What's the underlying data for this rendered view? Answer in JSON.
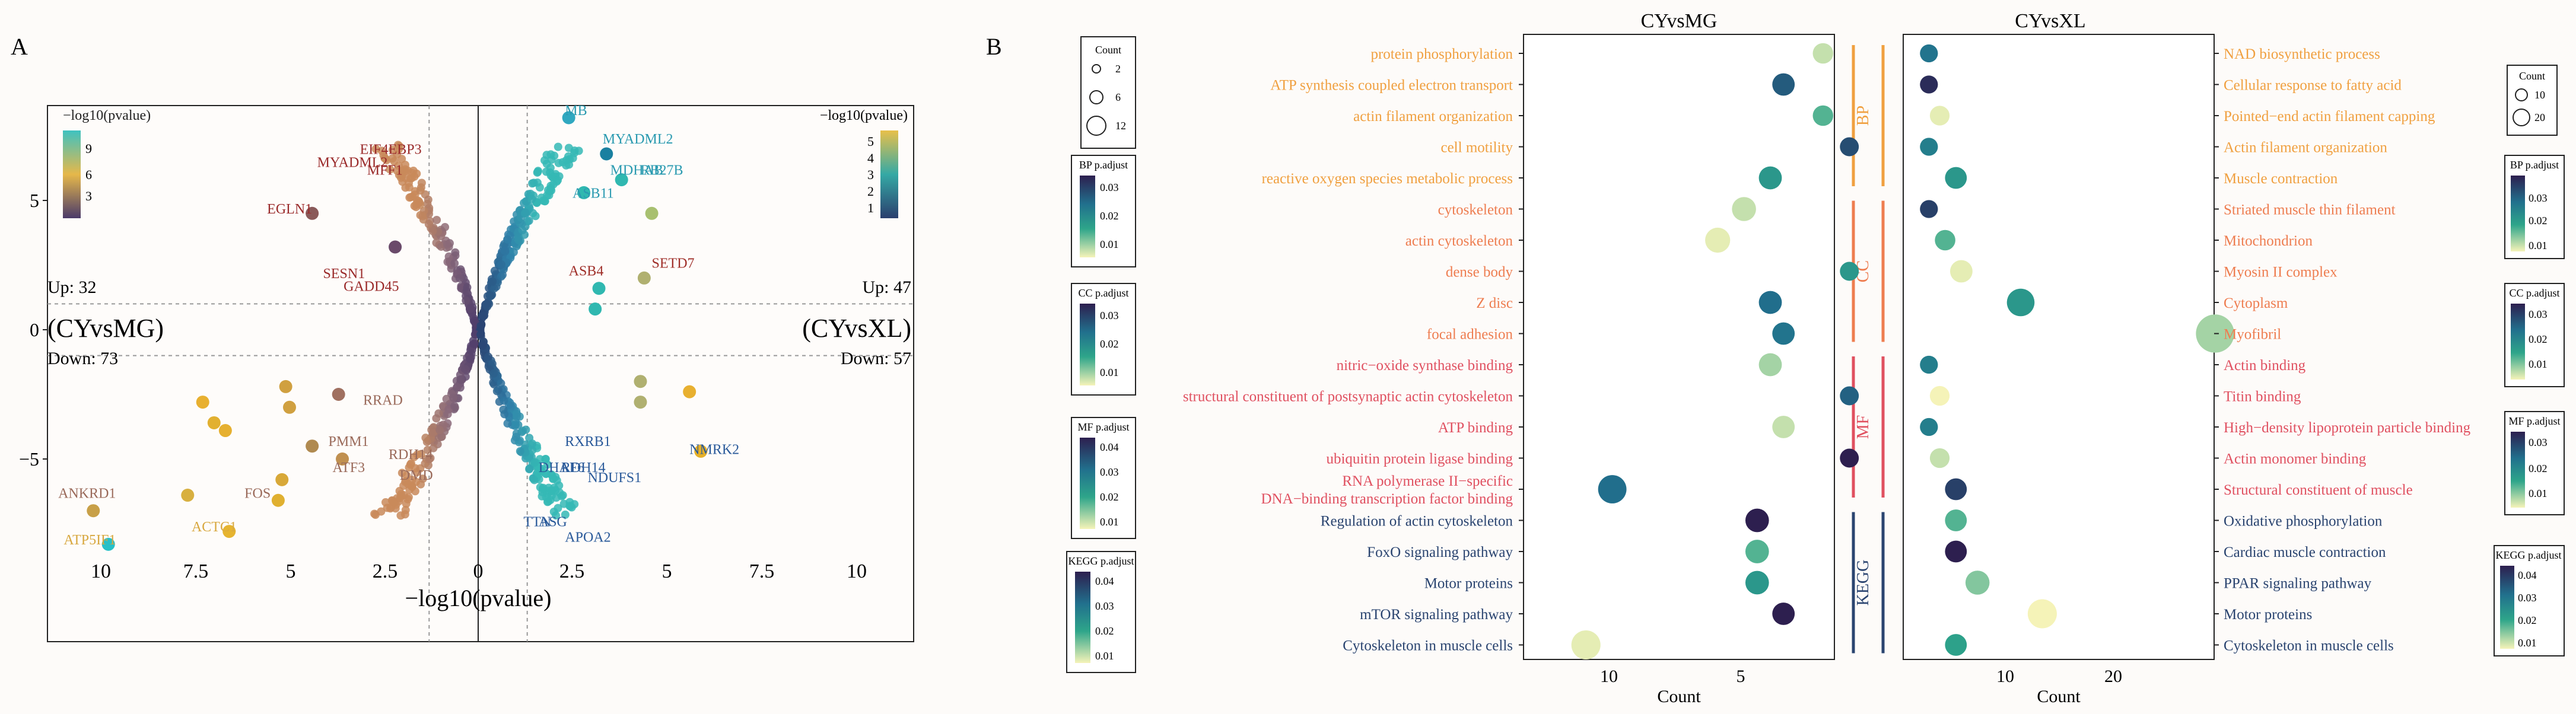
{
  "panel_labels": [
    "A",
    "B"
  ],
  "colors": {
    "bp": "#f0a040",
    "cc": "#ee7d50",
    "mf": "#e05060",
    "kegg": "#2a4470",
    "viridis_low": "#f5f3b8",
    "viridis_high": "#2d1f4f"
  },
  "chart_data": [
    {
      "type": "scatter",
      "name": "volcano",
      "xlabel": "−log10(pvalue)",
      "xticks_left": [
        "10",
        "7.5",
        "5",
        "2.5",
        "0"
      ],
      "xticks_right": [
        "2.5",
        "5",
        "7.5",
        "10"
      ],
      "yticks": [
        "5",
        "0",
        "−5"
      ],
      "left_title": "(CYvsMG)",
      "right_title": "(CYvsXL)",
      "left_up": "Up: 32",
      "left_down": "Down: 73",
      "right_up": "Up: 47",
      "right_down": "Down: 57",
      "left_legend": {
        "title": "−log10(pvalue)",
        "ticks": [
          "9",
          "6",
          "3"
        ]
      },
      "right_legend": {
        "title": "−log10(pvalue)",
        "ticks": [
          "5",
          "4",
          "3",
          "2",
          "1"
        ]
      },
      "labels": [
        {
          "text": "EIF4EBP3",
          "x": -1.5,
          "y": 6.8,
          "side": "left"
        },
        {
          "text": "MYADML2",
          "x": -2.4,
          "y": 6.3,
          "side": "left"
        },
        {
          "text": "MFF1",
          "x": -2.0,
          "y": 6.0,
          "side": "left"
        },
        {
          "text": "EGLN1",
          "x": -4.4,
          "y": 4.5,
          "side": "left"
        },
        {
          "text": "SESN1",
          "x": -3.0,
          "y": 2.0,
          "side": "left"
        },
        {
          "text": "GADD45",
          "x": -2.1,
          "y": 1.5,
          "side": "left"
        },
        {
          "text": "RRAD",
          "x": -2.0,
          "y": -2.9,
          "side": "left"
        },
        {
          "text": "PMM1",
          "x": -2.9,
          "y": -4.5,
          "side": "left"
        },
        {
          "text": "DMD",
          "x": -1.2,
          "y": -5.8,
          "side": "left"
        },
        {
          "text": "RDH14",
          "x": -1.2,
          "y": -5.0,
          "side": "left"
        },
        {
          "text": "ATF3",
          "x": -3.0,
          "y": -5.5,
          "side": "left"
        },
        {
          "text": "FOS",
          "x": -5.5,
          "y": -6.5,
          "side": "left"
        },
        {
          "text": "ANKRD1",
          "x": -9.6,
          "y": -6.5,
          "side": "left"
        },
        {
          "text": "ACTC1",
          "x": -6.4,
          "y": -7.8,
          "side": "left"
        },
        {
          "text": "ATP5IF1",
          "x": -9.6,
          "y": -8.3,
          "side": "left"
        },
        {
          "text": "MB",
          "x": 2.3,
          "y": 8.3,
          "side": "right"
        },
        {
          "text": "MYADML2",
          "x": 3.3,
          "y": 7.2,
          "side": "right"
        },
        {
          "text": "MDHAB",
          "x": 3.5,
          "y": 6.0,
          "side": "right"
        },
        {
          "text": "RB27B",
          "x": 4.3,
          "y": 6.0,
          "side": "right"
        },
        {
          "text": "ASB11",
          "x": 2.5,
          "y": 5.1,
          "side": "right"
        },
        {
          "text": "ASB4",
          "x": 2.4,
          "y": 2.1,
          "side": "right"
        },
        {
          "text": "SETD7",
          "x": 4.6,
          "y": 2.4,
          "side": "right"
        },
        {
          "text": "NMRK2",
          "x": 5.6,
          "y": -4.8,
          "side": "right"
        },
        {
          "text": "NDUFS1",
          "x": 2.9,
          "y": -5.9,
          "side": "right"
        },
        {
          "text": "RDH14",
          "x": 2.2,
          "y": -5.5,
          "side": "right"
        },
        {
          "text": "RXRB1",
          "x": 2.3,
          "y": -4.5,
          "side": "right"
        },
        {
          "text": "DHAF6",
          "x": 1.6,
          "y": -5.5,
          "side": "right"
        },
        {
          "text": "TTN",
          "x": 1.2,
          "y": -7.6,
          "side": "right"
        },
        {
          "text": "ASG",
          "x": 1.6,
          "y": -7.6,
          "side": "right"
        },
        {
          "text": "APOA2",
          "x": 2.3,
          "y": -8.2,
          "side": "right"
        }
      ]
    },
    {
      "type": "scatter",
      "name": "enrichment_dotplot",
      "left_title": "CYvsMG",
      "right_title": "CYvsXL",
      "xlabel": "Count",
      "left_xticks": [
        "10",
        "5"
      ],
      "right_xticks": [
        "10",
        "20"
      ],
      "groups": [
        "BP",
        "CC",
        "MF",
        "KEGG"
      ],
      "left_terms": [
        {
          "label": "protein phosphorylation",
          "group": "BP",
          "count": 3.0,
          "padj": 0.008
        },
        {
          "label": "ATP synthesis coupled electron transport",
          "group": "BP",
          "count": 4.5,
          "padj": 0.031
        },
        {
          "label": "actin filament organization",
          "group": "BP",
          "count": 3.0,
          "padj": 0.015
        },
        {
          "label": "cell motility",
          "group": "BP",
          "count": 2.0,
          "padj": 0.033
        },
        {
          "label": "reactive oxygen species metabolic process",
          "group": "BP",
          "count": 5.0,
          "padj": 0.02
        },
        {
          "label": "cytoskeleton",
          "group": "CC",
          "count": 6.0,
          "padj": 0.008
        },
        {
          "label": "actin cytoskeleton",
          "group": "CC",
          "count": 7.0,
          "padj": 0.006
        },
        {
          "label": "dense body",
          "group": "CC",
          "count": 2.0,
          "padj": 0.02
        },
        {
          "label": "Z disc",
          "group": "CC",
          "count": 5.0,
          "padj": 0.028
        },
        {
          "label": "focal adhesion",
          "group": "CC",
          "count": 4.5,
          "padj": 0.027
        },
        {
          "label": "nitric−oxide synthase binding",
          "group": "MF",
          "count": 5.0,
          "padj": 0.01
        },
        {
          "label": "structural constituent of postsynaptic actin cytoskeleton",
          "group": "MF",
          "count": 2.0,
          "padj": 0.03
        },
        {
          "label": "ATP binding",
          "group": "MF",
          "count": 4.5,
          "padj": 0.008
        },
        {
          "label": "ubiquitin protein ligase binding",
          "group": "MF",
          "count": 2.0,
          "padj": 0.04
        },
        {
          "label": "RNA polymerase II−specific DNA−binding transcription factor binding",
          "group": "MF",
          "count": 11.0,
          "padj": 0.028
        },
        {
          "label": "Regulation of actin cytoskeleton",
          "group": "KEGG",
          "count": 5.5,
          "padj": 0.04
        },
        {
          "label": "FoxO signaling pathway",
          "group": "KEGG",
          "count": 5.5,
          "padj": 0.015
        },
        {
          "label": "Motor proteins",
          "group": "KEGG",
          "count": 5.5,
          "padj": 0.02
        },
        {
          "label": "mTOR signaling pathway",
          "group": "KEGG",
          "count": 4.5,
          "padj": 0.04
        },
        {
          "label": "Cytoskeleton in muscle cells",
          "group": "KEGG",
          "count": 12.0,
          "padj": 0.006
        }
      ],
      "right_terms": [
        {
          "label": "NAD biosynthetic process",
          "group": "BP",
          "count": 1.5,
          "padj": 0.027
        },
        {
          "label": "Cellular response to fatty acid",
          "group": "BP",
          "count": 1.5,
          "padj": 0.038
        },
        {
          "label": "Pointed−end actin filament capping",
          "group": "BP",
          "count": 2.5,
          "padj": 0.006
        },
        {
          "label": "Actin filament organization",
          "group": "BP",
          "count": 1.5,
          "padj": 0.025
        },
        {
          "label": "Muscle contraction",
          "group": "BP",
          "count": 4.0,
          "padj": 0.02
        },
        {
          "label": "Striated muscle thin filament",
          "group": "CC",
          "count": 1.5,
          "padj": 0.035
        },
        {
          "label": "Mitochondrion",
          "group": "CC",
          "count": 3.0,
          "padj": 0.015
        },
        {
          "label": "Myosin II complex",
          "group": "CC",
          "count": 4.5,
          "padj": 0.006
        },
        {
          "label": "Cytoplasm",
          "group": "CC",
          "count": 10.0,
          "padj": 0.02
        },
        {
          "label": "Myofibril",
          "group": "CC",
          "count": 28.0,
          "padj": 0.01
        },
        {
          "label": "Actin binding",
          "group": "MF",
          "count": 1.5,
          "padj": 0.025
        },
        {
          "label": "Titin binding",
          "group": "MF",
          "count": 2.5,
          "padj": 0.005
        },
        {
          "label": "High−density lipoprotein particle binding",
          "group": "MF",
          "count": 1.5,
          "padj": 0.025
        },
        {
          "label": "Actin monomer binding",
          "group": "MF",
          "count": 2.5,
          "padj": 0.008
        },
        {
          "label": "Structural constituent of muscle",
          "group": "MF",
          "count": 4.0,
          "padj": 0.035
        },
        {
          "label": "Oxidative phosphorylation",
          "group": "KEGG",
          "count": 4.0,
          "padj": 0.015
        },
        {
          "label": "Cardiac muscle contraction",
          "group": "KEGG",
          "count": 4.0,
          "padj": 0.04
        },
        {
          "label": "PPAR signaling pathway",
          "group": "KEGG",
          "count": 6.0,
          "padj": 0.012
        },
        {
          "label": "Motor proteins",
          "group": "KEGG",
          "count": 12.0,
          "padj": 0.005
        },
        {
          "label": "Cytoskeleton in muscle cells",
          "group": "KEGG",
          "count": 4.0,
          "padj": 0.018
        }
      ],
      "left_legends": {
        "count": {
          "title": "Count",
          "values": [
            "2",
            "6",
            "12"
          ]
        },
        "bp": {
          "title": "BP p.adjust",
          "ticks": [
            "0.03",
            "0.02",
            "0.01"
          ]
        },
        "cc": {
          "title": "CC p.adjust",
          "ticks": [
            "0.03",
            "0.02",
            "0.01"
          ]
        },
        "mf": {
          "title": "MF p.adjust",
          "ticks": [
            "0.04",
            "0.03",
            "0.02",
            "0.01"
          ]
        },
        "kegg": {
          "title": "KEGG p.adjust",
          "ticks": [
            "0.04",
            "0.03",
            "0.02",
            "0.01"
          ]
        }
      },
      "right_legends": {
        "count": {
          "title": "Count",
          "values": [
            "10",
            "20"
          ]
        },
        "bp": {
          "title": "BP p.adjust",
          "ticks": [
            "0.03",
            "0.02",
            "0.01"
          ]
        },
        "cc": {
          "title": "CC p.adjust",
          "ticks": [
            "0.03",
            "0.02",
            "0.01"
          ]
        },
        "mf": {
          "title": "MF p.adjust",
          "ticks": [
            "0.03",
            "0.02",
            "0.01"
          ]
        },
        "kegg": {
          "title": "KEGG p.adjust",
          "ticks": [
            "0.04",
            "0.03",
            "0.02",
            "0.01"
          ]
        }
      }
    }
  ]
}
